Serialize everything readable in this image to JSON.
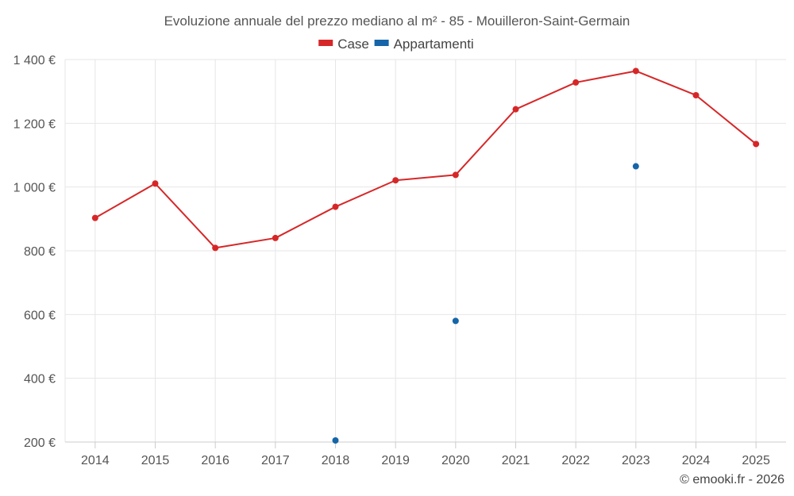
{
  "chart_data": {
    "type": "line",
    "title": "Evoluzione annuale del prezzo mediano al m² - 85 - Mouilleron-Saint-Germain",
    "categories": [
      "2014",
      "2015",
      "2016",
      "2017",
      "2018",
      "2019",
      "2020",
      "2021",
      "2022",
      "2023",
      "2024",
      "2025"
    ],
    "series": [
      {
        "name": "Case",
        "color": "#d62728",
        "values": [
          903,
          1011,
          809,
          840,
          938,
          1021,
          1038,
          1244,
          1328,
          1364,
          1288,
          1135
        ]
      },
      {
        "name": "Appartamenti",
        "color": "#1565a8",
        "values": [
          null,
          null,
          null,
          null,
          205,
          null,
          580,
          null,
          null,
          1065,
          null,
          null
        ]
      }
    ],
    "ylim": [
      200,
      1400
    ],
    "yticks": [
      200,
      400,
      600,
      800,
      1000,
      1200,
      1400
    ],
    "ytick_labels": [
      "200 €",
      "400 €",
      "600 €",
      "800 €",
      "1 000 €",
      "1 200 €",
      "1 400 €"
    ],
    "grid": true,
    "legend_position": "top-center",
    "xlabel": "",
    "ylabel": ""
  },
  "credit": "© emooki.fr - 2026"
}
